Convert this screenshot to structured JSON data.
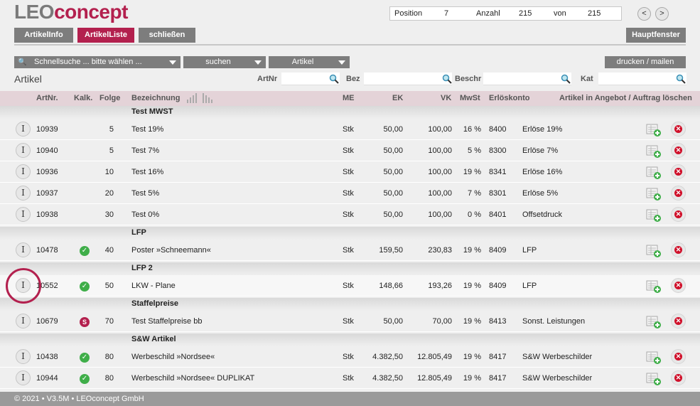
{
  "app": {
    "logo_part1": "LEO",
    "logo_part2": "concept",
    "brand_color": "#b3204e"
  },
  "position_box": {
    "position_label": "Position",
    "position_value": "7",
    "anzahl_label": "Anzahl",
    "anzahl_value": "215",
    "von_label": "von",
    "von_value": "215"
  },
  "nav": {
    "prev": "<",
    "next": ">"
  },
  "tabs": {
    "artikelinfo": "ArtikelInfo",
    "artikelliste": "ArtikelListe",
    "schliessen": "schließen",
    "hauptfenster": "Hauptfenster"
  },
  "toolbar": {
    "schnellsuche": "Schnellsuche ... bitte wählen ...",
    "suchen": "suchen",
    "artikel": "Artikel",
    "drucken": "drucken / mailen"
  },
  "section_title": "Artikel",
  "filters": {
    "artnr_label": "ArtNr",
    "bez_label": "Bez",
    "beschr_label": "Beschr",
    "kat_label": "Kat",
    "artnr_value": "",
    "bez_value": "",
    "beschr_value": "",
    "kat_value": ""
  },
  "columns": {
    "artnr": "ArtNr.",
    "kalk": "Kalk.",
    "folge": "Folge",
    "bezeichnung": "Bezeichnung",
    "me": "ME",
    "ek": "EK",
    "vk": "VK",
    "mwst": "MwSt",
    "erloeskonto": "Erlöskonto",
    "actions": "Artikel in Angebot / Auftrag löschen"
  },
  "groups": [
    {
      "title": "Test MWST",
      "rows": [
        {
          "artnr": "10939",
          "kalk": "",
          "folge": "5",
          "bez": "Test 19%",
          "me": "Stk",
          "ek": "50,00",
          "vk": "100,00",
          "mwst": "16 %",
          "konto": "8400",
          "konto_name": "Erlöse 19%"
        },
        {
          "artnr": "10940",
          "kalk": "",
          "folge": "5",
          "bez": "Test 7%",
          "me": "Stk",
          "ek": "50,00",
          "vk": "100,00",
          "mwst": "5 %",
          "konto": "8300",
          "konto_name": "Erlöse 7%"
        },
        {
          "artnr": "10936",
          "kalk": "",
          "folge": "10",
          "bez": "Test 16%",
          "me": "Stk",
          "ek": "50,00",
          "vk": "100,00",
          "mwst": "19 %",
          "konto": "8341",
          "konto_name": "Erlöse 16%"
        },
        {
          "artnr": "10937",
          "kalk": "",
          "folge": "20",
          "bez": "Test 5%",
          "me": "Stk",
          "ek": "50,00",
          "vk": "100,00",
          "mwst": "7 %",
          "konto": "8301",
          "konto_name": "Erlöse 5%"
        },
        {
          "artnr": "10938",
          "kalk": "",
          "folge": "30",
          "bez": "Test 0%",
          "me": "Stk",
          "ek": "50,00",
          "vk": "100,00",
          "mwst": "0 %",
          "konto": "8401",
          "konto_name": "Offsetdruck"
        }
      ]
    },
    {
      "title": "LFP",
      "rows": [
        {
          "artnr": "10478",
          "kalk": "check",
          "folge": "40",
          "bez": "Poster »Schneemann«",
          "me": "Stk",
          "ek": "159,50",
          "vk": "230,83",
          "mwst": "19 %",
          "konto": "8409",
          "konto_name": "LFP"
        }
      ]
    },
    {
      "title": "LFP 2",
      "rows": [
        {
          "artnr": "10552",
          "kalk": "check",
          "folge": "50",
          "bez": "LKW - Plane",
          "me": "Stk",
          "ek": "148,66",
          "vk": "193,26",
          "mwst": "19 %",
          "konto": "8409",
          "konto_name": "LFP"
        }
      ]
    },
    {
      "title": "Staffelpreise",
      "rows": [
        {
          "artnr": "10679",
          "kalk": "s",
          "folge": "70",
          "bez": "Test Staffelpreise bb",
          "me": "Stk",
          "ek": "50,00",
          "vk": "70,00",
          "mwst": "19 %",
          "konto": "8413",
          "konto_name": "Sonst. Leistungen"
        }
      ]
    },
    {
      "title": "S&W Artikel",
      "rows": [
        {
          "artnr": "10438",
          "kalk": "check",
          "folge": "80",
          "bez": "Werbeschild »Nordsee«",
          "me": "Stk",
          "ek": "4.382,50",
          "vk": "12.805,49",
          "mwst": "19 %",
          "konto": "8417",
          "konto_name": "S&W Werbeschilder"
        },
        {
          "artnr": "10944",
          "kalk": "check",
          "folge": "80",
          "bez": "Werbeschild »Nordsee« DUPLIKAT",
          "me": "Stk",
          "ek": "4.382,50",
          "vk": "12.805,49",
          "mwst": "19 %",
          "konto": "8417",
          "konto_name": "S&W Werbeschilder"
        }
      ]
    }
  ],
  "icons": {
    "info": "I",
    "check": "✓",
    "staffel": "S",
    "delete": "✕"
  },
  "footer": "© 2021 • V3.5M • LEOconcept GmbH"
}
